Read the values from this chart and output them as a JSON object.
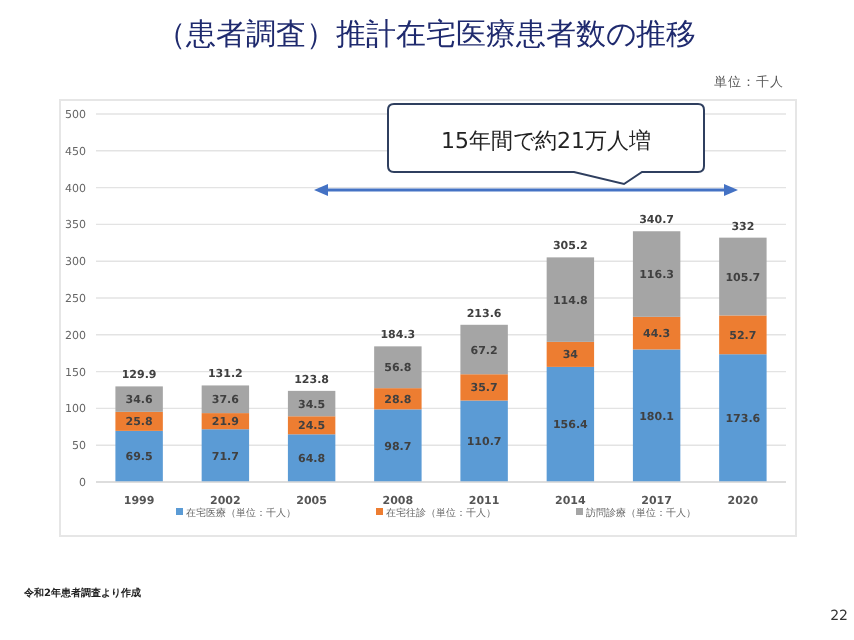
{
  "chart_data": {
    "type": "bar",
    "stacked": true,
    "title": "（患者調査）推計在宅医療患者数の推移",
    "subtitle": "単位：千人",
    "categories": [
      "1999",
      "2002",
      "2005",
      "2008",
      "2011",
      "2014",
      "2017",
      "2020"
    ],
    "series": [
      {
        "name": "在宅医療（単位：千人）",
        "color": "#5b9bd5",
        "values": [
          69.5,
          71.7,
          64.8,
          98.7,
          110.7,
          156.4,
          180.1,
          173.6
        ]
      },
      {
        "name": "在宅往診（単位：千人）",
        "color": "#ed7d31",
        "values": [
          25.8,
          21.9,
          24.5,
          28.8,
          35.7,
          34,
          44.3,
          52.7
        ]
      },
      {
        "name": "訪問診療（単位：千人）",
        "color": "#a5a5a5",
        "values": [
          34.6,
          37.6,
          34.5,
          56.8,
          67.2,
          114.8,
          116.3,
          105.7
        ]
      }
    ],
    "totals": [
      "129.9",
      "131.2",
      "123.8",
      "184.3",
      "213.6",
      "305.2",
      "340.7",
      "332"
    ],
    "data_labels": true,
    "ylim": [
      0,
      500
    ],
    "yticks": [
      0,
      50,
      100,
      150,
      200,
      250,
      300,
      350,
      400,
      450,
      500
    ],
    "grid": "y",
    "legend": "bottom",
    "annotations": [
      "15年間で約21万人増",
      "令和2年患者調査より作成",
      "22"
    ]
  }
}
